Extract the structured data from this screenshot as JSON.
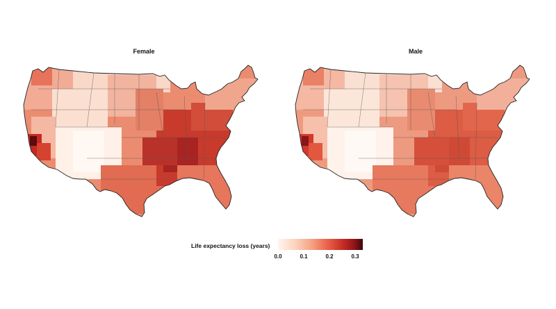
{
  "panels": [
    {
      "title": "Female"
    },
    {
      "title": "Male"
    }
  ],
  "legend": {
    "title": "Life expectancy loss (years)",
    "ticks": [
      "0.0",
      "0.1",
      "0.2",
      "0.3"
    ],
    "range": [
      0.0,
      0.35
    ],
    "colors": [
      "#fff5f0",
      "#fcd3bf",
      "#f6a283",
      "#e96349",
      "#c92d25",
      "#901419",
      "#3d0709"
    ]
  }
}
